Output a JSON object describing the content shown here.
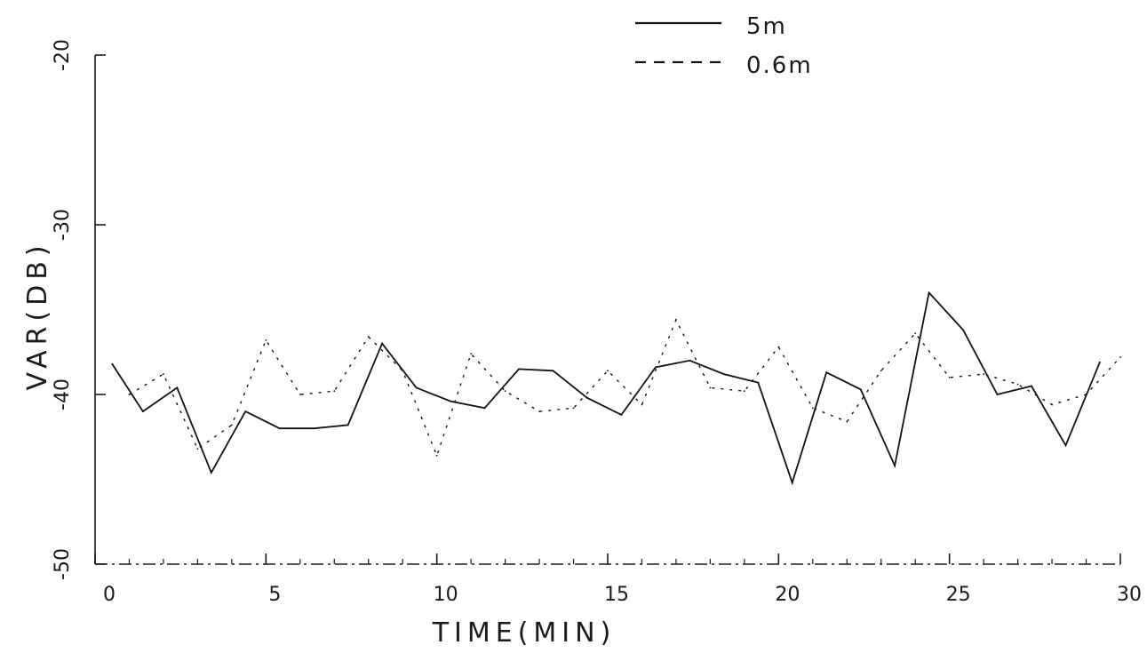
{
  "chart_data": {
    "type": "line",
    "title": "",
    "xlabel": "TIME(MIN)",
    "ylabel": "VAR(DB)",
    "xlim": [
      0,
      30
    ],
    "ylim": [
      -50,
      -20
    ],
    "xticks": [
      0,
      5,
      10,
      15,
      20,
      25,
      30
    ],
    "xtick_labels": [
      "0",
      "5",
      "10",
      "15",
      "20",
      "25",
      "30"
    ],
    "yticks": [
      -50,
      -40,
      -30,
      -20
    ],
    "ytick_labels": [
      "-50",
      "-40",
      "-30",
      "-20"
    ],
    "grid": false,
    "legend_position": "top-right",
    "series": [
      {
        "name": "5m",
        "style": "solid",
        "color": "#111111",
        "x": [
          0.5,
          1.4,
          2.4,
          3.4,
          4.4,
          5.4,
          6.4,
          7.4,
          8.4,
          9.4,
          10.4,
          11.4,
          12.4,
          13.4,
          14.4,
          15.4,
          16.4,
          17.4,
          18.4,
          19.4,
          20.4,
          21.4,
          22.4,
          23.4,
          24.4,
          25.4,
          26.4,
          27.4,
          28.4,
          29.4
        ],
        "y": [
          -38.2,
          -41.0,
          -39.6,
          -44.6,
          -41.0,
          -42.0,
          -42.0,
          -41.8,
          -37.0,
          -39.6,
          -40.4,
          -40.8,
          -38.5,
          -38.6,
          -40.2,
          -41.2,
          -38.4,
          -38.0,
          -38.8,
          -39.3,
          -45.2,
          -38.7,
          -39.7,
          -44.2,
          -34.0,
          -36.2,
          -40.0,
          -39.5,
          -43.0,
          -38.1
        ]
      },
      {
        "name": "0.6m",
        "style": "dashed",
        "color": "#111111",
        "x": [
          1.0,
          2.0,
          3.0,
          4.0,
          5.0,
          6.0,
          7.0,
          8.0,
          9.0,
          10.0,
          11.0,
          12.0,
          13.0,
          14.0,
          15.0,
          16.0,
          17.0,
          18.0,
          19.0,
          20.0,
          21.0,
          22.0,
          23.0,
          24.0,
          25.0,
          26.0,
          27.0,
          28.0,
          29.0,
          30.0
        ],
        "y": [
          -40.0,
          -38.8,
          -43.2,
          -41.8,
          -36.8,
          -40.0,
          -39.8,
          -36.6,
          -38.6,
          -43.6,
          -37.6,
          -39.8,
          -41.0,
          -40.8,
          -38.6,
          -40.6,
          -35.6,
          -39.6,
          -39.8,
          -37.2,
          -40.8,
          -41.6,
          -38.6,
          -36.4,
          -39.0,
          -38.8,
          -39.4,
          -40.6,
          -40.0,
          -37.8
        ]
      }
    ]
  }
}
